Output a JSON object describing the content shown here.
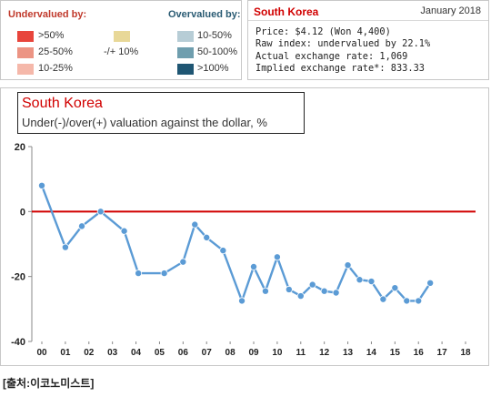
{
  "legend": {
    "undervalued_title": "Undervalued by:",
    "overvalued_title": "Overvalued by:",
    "items": [
      {
        "label": ">50%",
        "color": "#e8453c"
      },
      {
        "label": "25-50%",
        "color": "#ec9484"
      },
      {
        "label": "10-25%",
        "color": "#f5b8aa"
      },
      {
        "label": "-/+ 10%",
        "color": "#e8d898"
      },
      {
        "label": "10-50%",
        "color": "#b7cdd6"
      },
      {
        "label": "50-100%",
        "color": "#6f9eae"
      },
      {
        "label": ">100%",
        "color": "#1f5673"
      }
    ]
  },
  "info": {
    "country": "South Korea",
    "date": "January 2018",
    "price": "Price: $4.12 (Won 4,400)",
    "raw_index": "Raw index: undervalued by 22.1%",
    "actual_rate": "Actual exchange rate: 1,069",
    "implied_rate": "Implied exchange rate*: 833.33"
  },
  "chart_data": {
    "type": "line",
    "title": "South Korea",
    "subtitle": "Under(-)/over(+) valuation against the dollar, %",
    "ylim": [
      -40,
      20
    ],
    "yticks": [
      20,
      0,
      -20,
      -40
    ],
    "xtick_labels": [
      "00",
      "01",
      "02",
      "03",
      "04",
      "05",
      "06",
      "07",
      "08",
      "09",
      "10",
      "11",
      "12",
      "13",
      "14",
      "15",
      "16",
      "17",
      "18"
    ],
    "reference_line": 0,
    "line_color": "#5b9bd5",
    "reference_color": "#d10000",
    "points": [
      {
        "x": 2000.0,
        "y": 8
      },
      {
        "x": 2001.0,
        "y": -11
      },
      {
        "x": 2001.7,
        "y": -4.5
      },
      {
        "x": 2002.5,
        "y": 0
      },
      {
        "x": 2003.5,
        "y": -6
      },
      {
        "x": 2004.1,
        "y": -19
      },
      {
        "x": 2005.2,
        "y": -19
      },
      {
        "x": 2006.0,
        "y": -15.5
      },
      {
        "x": 2006.5,
        "y": -4
      },
      {
        "x": 2007.0,
        "y": -8
      },
      {
        "x": 2007.7,
        "y": -12
      },
      {
        "x": 2008.5,
        "y": -27.5
      },
      {
        "x": 2009.0,
        "y": -17
      },
      {
        "x": 2009.5,
        "y": -24.5
      },
      {
        "x": 2010.0,
        "y": -14
      },
      {
        "x": 2010.5,
        "y": -24
      },
      {
        "x": 2011.0,
        "y": -26
      },
      {
        "x": 2011.5,
        "y": -22.5
      },
      {
        "x": 2012.0,
        "y": -24.5
      },
      {
        "x": 2012.5,
        "y": -25
      },
      {
        "x": 2013.0,
        "y": -16.5
      },
      {
        "x": 2013.5,
        "y": -21
      },
      {
        "x": 2014.0,
        "y": -21.5
      },
      {
        "x": 2014.5,
        "y": -27
      },
      {
        "x": 2015.0,
        "y": -23.5
      },
      {
        "x": 2015.5,
        "y": -27.5
      },
      {
        "x": 2016.0,
        "y": -27.5
      },
      {
        "x": 2016.5,
        "y": -22
      }
    ]
  },
  "source": "[출처:이코노미스트]"
}
